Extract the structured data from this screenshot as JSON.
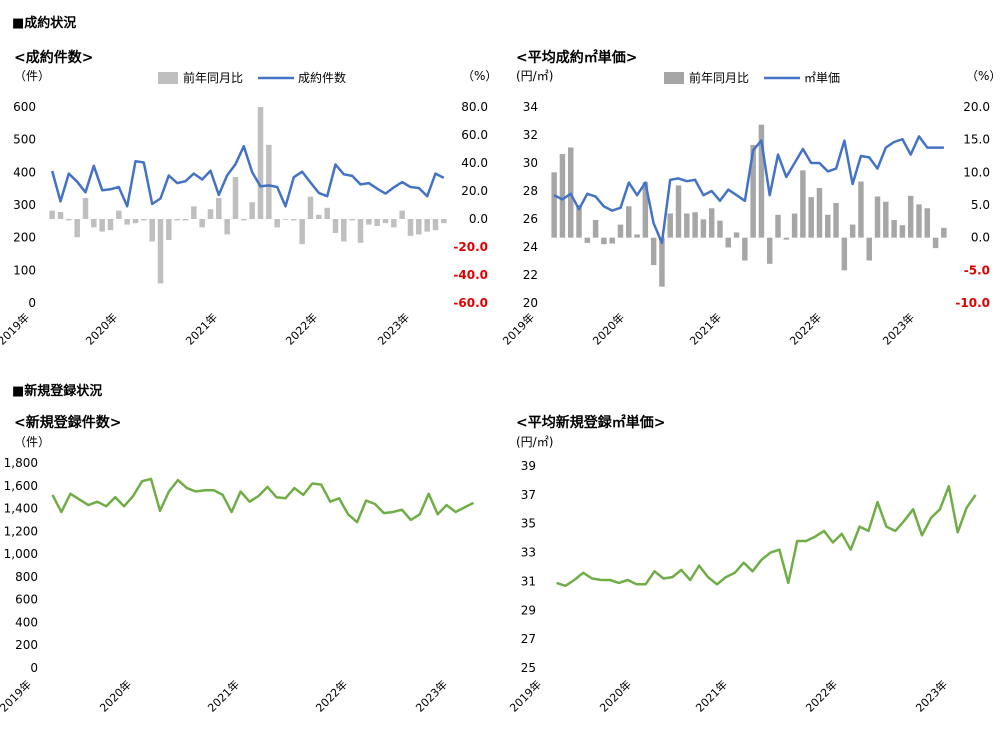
{
  "sections": {
    "contract": "■成約状況",
    "newreg": "■新規登録状況"
  },
  "chart_data": [
    {
      "type": "bar+line",
      "title": "<成約件数>",
      "left_unit": "（件）",
      "right_unit": "（%）",
      "bar_name": "前年同月比",
      "line_name": "成約件数",
      "colors": {
        "bar": "#bfbfbf",
        "line": "#4472c4",
        "negative_tick": "#e00000"
      },
      "ylim_left": [
        0,
        600
      ],
      "yticks_left": [
        "600",
        "500",
        "400",
        "300",
        "200",
        "100",
        "0"
      ],
      "ylim_right": [
        -60,
        80
      ],
      "yticks_right": [
        "80.0",
        "60.0",
        "40.0",
        "20.0",
        "0.0",
        "-20.0",
        "-40.0",
        "-60.0"
      ],
      "x_labels": [
        "2019年",
        "2020年",
        "2021年",
        "2022年",
        "2023年"
      ],
      "line_values": [
        404,
        311,
        396,
        371,
        339,
        420,
        345,
        348,
        355,
        296,
        434,
        430,
        303,
        320,
        390,
        367,
        373,
        396,
        378,
        405,
        331,
        391,
        425,
        480,
        400,
        357,
        360,
        355,
        296,
        385,
        402,
        369,
        337,
        327,
        424,
        394,
        389,
        363,
        367,
        350,
        335,
        354,
        370,
        355,
        352,
        327,
        396,
        383
      ],
      "bar_values": [
        6,
        5,
        -1,
        -13,
        15,
        -6,
        -9,
        -8,
        6,
        -4,
        -3,
        -1,
        -16,
        -46,
        -15,
        -1,
        -1,
        9,
        -6,
        7,
        15,
        -11,
        30,
        -1,
        12,
        80,
        53,
        -6,
        0,
        -1,
        -18,
        16,
        3,
        8,
        -10,
        -16,
        -1,
        -17,
        -4,
        -5,
        -3,
        -6,
        6,
        -12,
        -11,
        -9,
        -8,
        -3
      ]
    },
    {
      "type": "bar+line",
      "title": "<平均成約㎡単価>",
      "left_unit": "(円/㎡)",
      "right_unit": "（%）",
      "bar_name": "前年同月比",
      "line_name": "㎡単価",
      "colors": {
        "bar": "#a6a6a6",
        "line": "#4472c4",
        "negative_tick": "#e00000"
      },
      "ylim_left": [
        20,
        34
      ],
      "yticks_left": [
        "34",
        "32",
        "30",
        "28",
        "26",
        "24",
        "22",
        "20"
      ],
      "ylim_right": [
        -10,
        20
      ],
      "yticks_right": [
        "20.0",
        "15.0",
        "10.0",
        "5.0",
        "0.0",
        "-5.0",
        "-10.0"
      ],
      "x_labels": [
        "2019年",
        "2020年",
        "2021年",
        "2022年",
        "2023年"
      ],
      "line_values": [
        27.7,
        27.4,
        27.8,
        26.7,
        27.8,
        27.6,
        26.9,
        26.6,
        26.8,
        28.6,
        27.7,
        28.6,
        25.7,
        24.3,
        28.8,
        28.9,
        28.7,
        28.8,
        27.7,
        28.0,
        27.3,
        28.1,
        27.7,
        27.3,
        30.9,
        31.6,
        27.7,
        30.6,
        29.0,
        30.0,
        31.0,
        30.0,
        30.0,
        29.4,
        29.6,
        31.6,
        28.5,
        30.5,
        30.4,
        29.6,
        31.1,
        31.5,
        31.7,
        30.6,
        31.9,
        31.1,
        31.1,
        31.1
      ],
      "bar_values": [
        10,
        12.8,
        13.8,
        5.0,
        -0.8,
        2.7,
        -1.0,
        -0.9,
        2.0,
        4.8,
        0.5,
        8.5,
        -4.2,
        -7.5,
        3.7,
        8.0,
        3.7,
        3.9,
        2.8,
        4.5,
        2.6,
        -1.5,
        0.8,
        -3.5,
        14.2,
        17.3,
        -4.0,
        3.5,
        -0.3,
        3.7,
        10.3,
        6.2,
        7.6,
        3.5,
        5.3,
        -5.0,
        2.0,
        8.6,
        -3.5,
        6.3,
        5.5,
        2.7,
        1.9,
        6.4,
        5.1,
        4.5,
        -1.6,
        1.5
      ]
    },
    {
      "type": "line",
      "title": "<新規登録件数>",
      "left_unit": "（件）",
      "colors": {
        "line": "#70ad47"
      },
      "ylim": [
        0,
        1800
      ],
      "yticks": [
        "1,800",
        "1,600",
        "1,400",
        "1,200",
        "1,000",
        "800",
        "600",
        "400",
        "200",
        "0"
      ],
      "x_labels": [
        "2019年",
        "2020年",
        "2021年",
        "2022年",
        "2023年"
      ],
      "values": [
        1520,
        1370,
        1530,
        1480,
        1430,
        1460,
        1420,
        1500,
        1420,
        1510,
        1640,
        1660,
        1380,
        1550,
        1650,
        1580,
        1550,
        1560,
        1560,
        1520,
        1370,
        1550,
        1460,
        1510,
        1590,
        1500,
        1490,
        1580,
        1520,
        1620,
        1610,
        1460,
        1490,
        1350,
        1280,
        1470,
        1440,
        1360,
        1370,
        1390,
        1300,
        1350,
        1530,
        1350,
        1430,
        1370,
        1410,
        1450
      ]
    },
    {
      "type": "line",
      "title": "<平均新規登録㎡単価>",
      "left_unit": "(円/㎡)",
      "colors": {
        "line": "#70ad47"
      },
      "ylim": [
        25,
        39
      ],
      "yticks": [
        "39",
        "37",
        "35",
        "33",
        "31",
        "29",
        "27",
        "25"
      ],
      "x_labels": [
        "2019年",
        "2020年",
        "2021年",
        "2022年",
        "2023年"
      ],
      "values": [
        30.9,
        30.7,
        31.1,
        31.6,
        31.2,
        31.1,
        31.1,
        30.9,
        31.1,
        30.8,
        30.8,
        31.7,
        31.2,
        31.3,
        31.8,
        31.1,
        32.1,
        31.3,
        30.8,
        31.3,
        31.6,
        32.3,
        31.7,
        32.5,
        33.0,
        33.2,
        30.9,
        33.8,
        33.8,
        34.1,
        34.5,
        33.7,
        34.3,
        33.2,
        34.8,
        34.5,
        36.5,
        34.8,
        34.5,
        35.2,
        36.0,
        34.2,
        35.4,
        36.0,
        37.6,
        34.4,
        36.1,
        37.0
      ]
    }
  ]
}
